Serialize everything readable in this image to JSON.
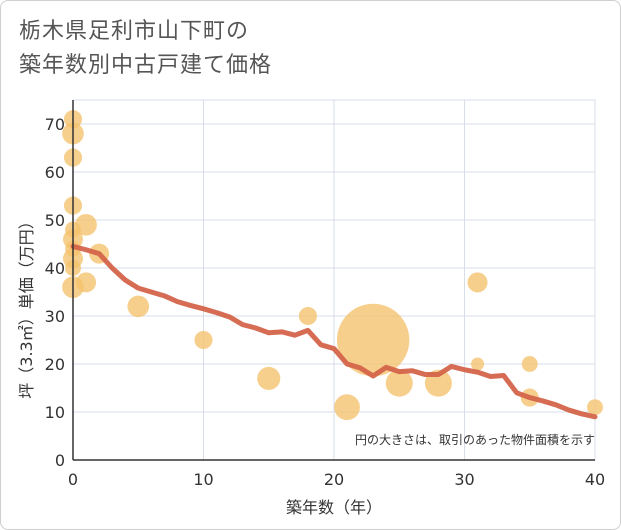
{
  "title_lines": [
    "栃木県足利市山下町の",
    "築年数別中古戸建て価格"
  ],
  "colors": {
    "bubble": "#f5c26b",
    "trend": "#d4644a",
    "grid": "#d7dee8",
    "axis": "#333333"
  },
  "chart_data": {
    "type": "scatter",
    "title": "栃木県足利市山下町の築年数別中古戸建て価格",
    "xlabel": "築年数（年）",
    "ylabel": "坪（3.3㎡）単価（万円）",
    "xlim": [
      0,
      40
    ],
    "ylim": [
      0,
      75
    ],
    "xticks": [
      0,
      10,
      20,
      30,
      40
    ],
    "yticks": [
      0,
      10,
      20,
      30,
      40,
      50,
      60,
      70
    ],
    "grid": true,
    "annotation": "円の大きさは、取引のあった物件面積を示す",
    "bubbles": [
      {
        "x": 0,
        "y": 71,
        "size": 3
      },
      {
        "x": 0,
        "y": 68,
        "size": 5
      },
      {
        "x": 0,
        "y": 63,
        "size": 3
      },
      {
        "x": 0,
        "y": 53,
        "size": 3
      },
      {
        "x": 0,
        "y": 48,
        "size": 2
      },
      {
        "x": 0,
        "y": 46,
        "size": 4
      },
      {
        "x": 0,
        "y": 44,
        "size": 2
      },
      {
        "x": 0,
        "y": 42,
        "size": 4
      },
      {
        "x": 0,
        "y": 40,
        "size": 2
      },
      {
        "x": 0,
        "y": 36,
        "size": 5
      },
      {
        "x": 1,
        "y": 49,
        "size": 5
      },
      {
        "x": 1,
        "y": 37,
        "size": 4
      },
      {
        "x": 2,
        "y": 43,
        "size": 4
      },
      {
        "x": 5,
        "y": 32,
        "size": 5
      },
      {
        "x": 10,
        "y": 25,
        "size": 3
      },
      {
        "x": 15,
        "y": 17,
        "size": 6
      },
      {
        "x": 18,
        "y": 30,
        "size": 3
      },
      {
        "x": 21,
        "y": 11,
        "size": 8
      },
      {
        "x": 23,
        "y": 25,
        "size": 90
      },
      {
        "x": 25,
        "y": 16,
        "size": 9
      },
      {
        "x": 28,
        "y": 16,
        "size": 9
      },
      {
        "x": 31,
        "y": 37,
        "size": 4
      },
      {
        "x": 31,
        "y": 20,
        "size": 1
      },
      {
        "x": 35,
        "y": 20,
        "size": 2
      },
      {
        "x": 35,
        "y": 13,
        "size": 3
      },
      {
        "x": 40,
        "y": 11,
        "size": 2
      }
    ],
    "trend": {
      "x": [
        0,
        1,
        2,
        3,
        4,
        5,
        6,
        7,
        8,
        9,
        10,
        11,
        12,
        13,
        14,
        15,
        16,
        17,
        18,
        19,
        20,
        21,
        22,
        23,
        24,
        25,
        26,
        27,
        28,
        29,
        30,
        31,
        32,
        33,
        34,
        35,
        36,
        37,
        38,
        39,
        40
      ],
      "y": [
        44.5,
        43.8,
        43,
        40,
        37.5,
        35.8,
        35,
        34.2,
        33,
        32.2,
        31.5,
        30.7,
        29.8,
        28.2,
        27.5,
        26.5,
        26.7,
        26,
        27,
        24,
        23.2,
        20,
        19.2,
        17.5,
        19.3,
        18.4,
        18.6,
        17.8,
        17.8,
        19.5,
        18.8,
        18.3,
        17.4,
        17.6,
        14,
        13,
        12.3,
        11.5,
        10.4,
        9.6,
        9
      ]
    }
  }
}
